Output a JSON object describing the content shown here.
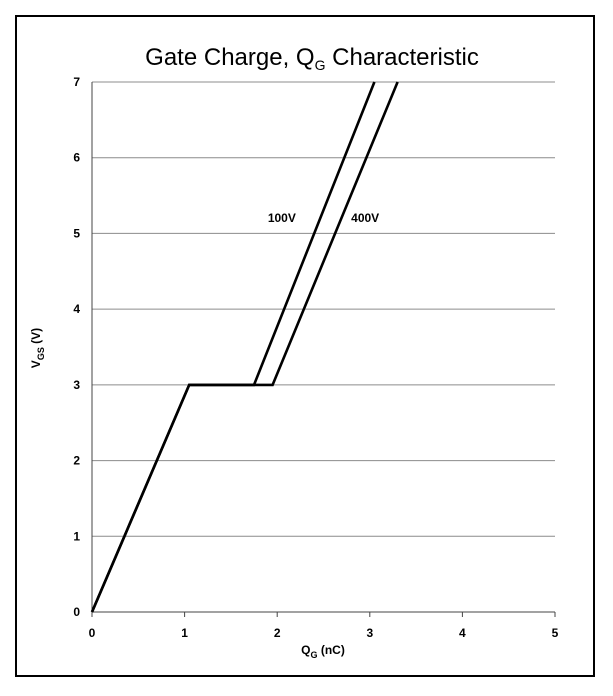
{
  "chart_data": {
    "type": "line",
    "title": {
      "main": "Gate Charge, Q",
      "sub": "G",
      "rest": " Characteristic"
    },
    "xlabel": {
      "main": "Q",
      "sub": "G",
      "rest": " (nC)"
    },
    "ylabel": {
      "main": "V",
      "sub": "GS",
      "rest": " (V)"
    },
    "xlim": [
      0,
      5
    ],
    "ylim": [
      0,
      7
    ],
    "x_ticks": [
      "0",
      "1",
      "2",
      "3",
      "4",
      "5"
    ],
    "y_ticks": [
      "0",
      "1",
      "2",
      "3",
      "4",
      "5",
      "6",
      "7"
    ],
    "grid": "horizontal",
    "series": [
      {
        "name": "100V",
        "x": [
          0,
          1.05,
          1.75,
          3.05
        ],
        "y": [
          0,
          3,
          3,
          7
        ],
        "label_at": [
          2.05,
          5.15
        ]
      },
      {
        "name": "400V",
        "x": [
          0,
          1.05,
          1.95,
          3.3
        ],
        "y": [
          0,
          3,
          3,
          7
        ],
        "label_at": [
          2.95,
          5.15
        ]
      }
    ]
  }
}
